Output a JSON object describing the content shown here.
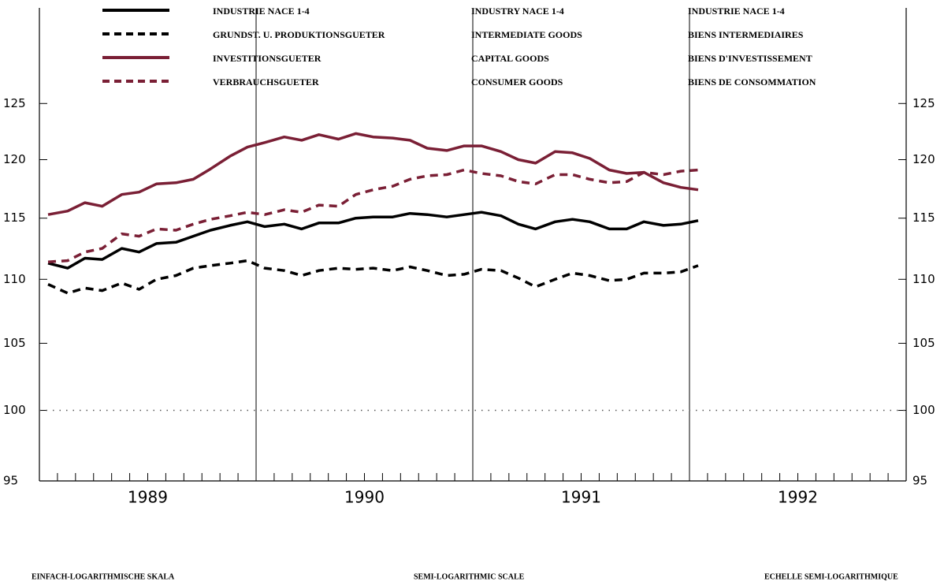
{
  "chart_data": {
    "type": "line",
    "log_scale": true,
    "xlim": [
      1989,
      1993
    ],
    "ylim": [
      95,
      134
    ],
    "yticks": [
      95,
      100,
      105,
      110,
      115,
      120,
      125
    ],
    "xticks": [
      {
        "value": 1989.5,
        "label": "1989"
      },
      {
        "value": 1990.5,
        "label": "1990"
      },
      {
        "value": 1991.5,
        "label": "1991"
      },
      {
        "value": 1992.5,
        "label": "1992"
      }
    ],
    "year_lines": [
      1990,
      1991,
      1992
    ],
    "minor_xticks_per_year": 12,
    "reference_line": 100,
    "x": [
      1989.04,
      1989.13,
      1989.21,
      1989.29,
      1989.38,
      1989.46,
      1989.54,
      1989.63,
      1989.71,
      1989.79,
      1989.88,
      1989.96,
      1990.04,
      1990.13,
      1990.21,
      1990.29,
      1990.38,
      1990.46,
      1990.54,
      1990.63,
      1990.71,
      1990.79,
      1990.88,
      1990.96,
      1991.04,
      1991.13,
      1991.21,
      1991.29,
      1991.38,
      1991.46,
      1991.54,
      1991.63,
      1991.71,
      1991.79,
      1991.88,
      1991.96,
      1992.04
    ],
    "series": [
      {
        "name": "INDUSTRIE NACE 1-4",
        "name_en": "INDUSTRY NACE 1-4",
        "name_fr": "INDUSTRIE NACE 1-4",
        "color": "#000000",
        "dashed": false,
        "values": [
          111.3,
          110.9,
          111.7,
          111.6,
          112.5,
          112.2,
          112.9,
          113.0,
          113.5,
          114.0,
          114.4,
          114.7,
          114.3,
          114.5,
          114.1,
          114.6,
          114.6,
          115.0,
          115.1,
          115.1,
          115.4,
          115.3,
          115.1,
          115.3,
          115.5,
          115.2,
          114.5,
          114.1,
          114.7,
          114.9,
          114.7,
          114.1,
          114.1,
          114.7,
          114.4,
          114.5,
          114.8
        ]
      },
      {
        "name": "GRUNDST. U. PRODUKTIONSGUETER",
        "name_en": "INTERMEDIATE GOODS",
        "name_fr": "BIENS INTERMEDIAIRES",
        "color": "#000000",
        "dashed": true,
        "values": [
          109.6,
          108.9,
          109.3,
          109.1,
          109.7,
          109.2,
          110.0,
          110.3,
          110.9,
          111.1,
          111.3,
          111.5,
          110.9,
          110.7,
          110.3,
          110.7,
          110.9,
          110.8,
          110.9,
          110.7,
          111.0,
          110.7,
          110.3,
          110.4,
          110.8,
          110.7,
          110.1,
          109.4,
          110.0,
          110.5,
          110.3,
          109.9,
          110.0,
          110.5,
          110.5,
          110.6,
          111.1
        ]
      },
      {
        "name": "INVESTITIONSGUETER",
        "name_en": "CAPITAL GOODS",
        "name_fr": "BIENS D'INVESTISSEMENT",
        "color": "#7a1f35",
        "dashed": false,
        "values": [
          115.3,
          115.6,
          116.3,
          116.0,
          117.0,
          117.2,
          117.9,
          118.0,
          118.3,
          119.2,
          120.3,
          121.1,
          121.5,
          122.0,
          121.7,
          122.2,
          121.8,
          122.3,
          122.0,
          121.9,
          121.7,
          121.0,
          120.8,
          121.2,
          121.2,
          120.7,
          120.0,
          119.7,
          120.7,
          120.6,
          120.1,
          119.1,
          118.8,
          118.9,
          118.0,
          117.6,
          117.4
        ]
      },
      {
        "name": "VERBRAUCHSGUETER",
        "name_en": "CONSUMER GOODS",
        "name_fr": "BIENS DE CONSOMMATION",
        "color": "#7a1f35",
        "dashed": true,
        "values": [
          111.4,
          111.5,
          112.2,
          112.5,
          113.7,
          113.5,
          114.1,
          114.0,
          114.5,
          114.9,
          115.2,
          115.5,
          115.3,
          115.7,
          115.5,
          116.1,
          116.0,
          117.0,
          117.4,
          117.7,
          118.3,
          118.6,
          118.7,
          119.1,
          118.8,
          118.6,
          118.1,
          117.9,
          118.7,
          118.7,
          118.3,
          118.0,
          118.1,
          118.9,
          118.7,
          119.0,
          119.1
        ]
      }
    ],
    "footer": [
      "EINFACH-LOGARITHMISCHE SKALA",
      "SEMI-LOGARITHMIC SCALE",
      "ECHELLE SEMI-LOGARITHMIQUE"
    ]
  }
}
